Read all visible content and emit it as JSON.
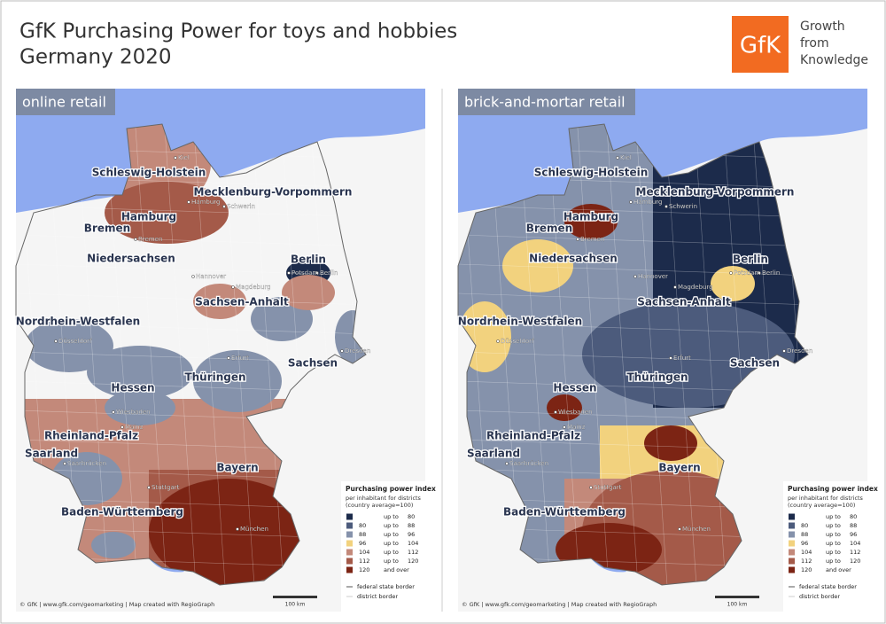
{
  "header": {
    "title": [
      "GfK Purchasing Power for toys and hobbies",
      "Germany 2020"
    ],
    "logo": "GfK",
    "tagline": [
      "Growth",
      "from",
      "Knowledge"
    ]
  },
  "maps": [
    {
      "label": "online retail"
    },
    {
      "label": "brick-and-mortar retail"
    }
  ],
  "states": [
    "Schleswig-Holstein",
    "Mecklenburg-Vorpommern",
    "Hamburg",
    "Bremen",
    "Niedersachsen",
    "Berlin",
    "Sachsen-Anhalt",
    "Nordrhein-Westfalen",
    "Sachsen",
    "Hessen",
    "Thüringen",
    "Rheinland-Pfalz",
    "Saarland",
    "Bayern",
    "Baden-Württemberg"
  ],
  "cities": [
    "Kiel",
    "Hamburg",
    "Schwerin",
    "Bremen",
    "Hannover",
    "Berlin",
    "Potsdam",
    "Magdeburg",
    "Düsseldorf",
    "Erfurt",
    "Dresden",
    "Wiesbaden",
    "Mainz",
    "Saarbrücken",
    "Stuttgart",
    "München"
  ],
  "legend": {
    "title": "Purchasing power index",
    "subtitle": [
      "per inhabitant for districts",
      "(country average=100)"
    ],
    "rows": [
      {
        "connector": "up to",
        "to": 80
      },
      {
        "from": 80,
        "connector": "up to",
        "to": 88
      },
      {
        "from": 88,
        "connector": "up to",
        "to": 96
      },
      {
        "from": 96,
        "connector": "up to",
        "to": 104
      },
      {
        "from": 104,
        "connector": "up to",
        "to": 112
      },
      {
        "from": 112,
        "connector": "up to",
        "to": 120
      },
      {
        "from": 120,
        "connector": "and over"
      }
    ],
    "lines": [
      "federal state border",
      "district border"
    ]
  },
  "footer": {
    "credit": "© GfK | www.gfk.com/geomarketing | Map created with RegioGraph",
    "scale": "100 km"
  }
}
